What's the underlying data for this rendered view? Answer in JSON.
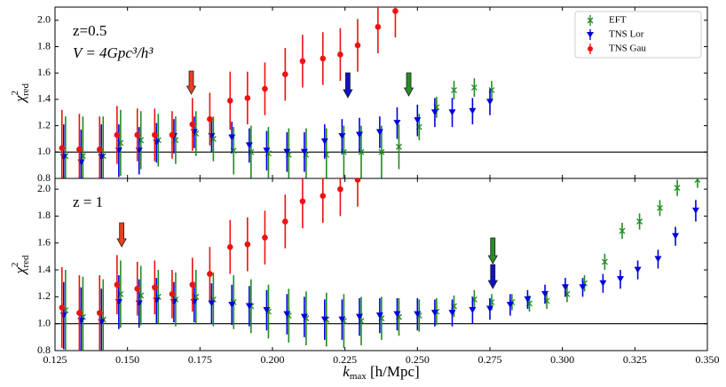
{
  "chart_data": [
    {
      "type": "errorbar",
      "annotations": [
        "z=0.5",
        "V = 4Gpc³/h³"
      ],
      "ylabel": {
        "base": "χ",
        "sup": "2",
        "sub": "red"
      },
      "x": [
        0.128,
        0.134,
        0.141,
        0.147,
        0.154,
        0.16,
        0.166,
        0.173,
        0.179,
        0.186,
        0.192,
        0.198,
        0.205,
        0.211,
        0.218,
        0.224,
        0.23,
        0.237,
        0.243,
        0.25,
        0.256,
        0.262,
        0.269,
        0.275
      ],
      "ylim": [
        0.8,
        2.1
      ],
      "yticks": [
        0.8,
        {
          "value": 1,
          "label": "1.0"
        },
        1.2,
        1.4,
        1.6,
        1.8,
        {
          "value": 2,
          "label": "2.0"
        }
      ],
      "hline": 1,
      "legend": "upper right",
      "series": [
        {
          "name": "EFT",
          "color": "#228b22",
          "marker": "x",
          "values": [
            0.97,
            0.97,
            0.97,
            1.07,
            1.09,
            1.09,
            1.09,
            1.14,
            1.1,
            1.01,
            1.0,
            0.99,
            0.98,
            0.98,
            0.98,
            1.0,
            1.0,
            1.0,
            1.04,
            1.19,
            1.34,
            1.47,
            1.49,
            1.47
          ],
          "errors": [
            0.3,
            0.3,
            0.3,
            0.25,
            0.22,
            0.2,
            0.18,
            0.17,
            0.17,
            0.18,
            0.2,
            0.2,
            0.2,
            0.2,
            0.2,
            0.2,
            0.2,
            0.2,
            0.17,
            0.1,
            0.08,
            0.07,
            0.07,
            0.07
          ]
        },
        {
          "name": "TNS Lor",
          "color": "#0000dd",
          "marker": "v",
          "values": [
            0.96,
            0.92,
            0.96,
            1.01,
            1.01,
            1.07,
            1.12,
            1.15,
            1.12,
            1.11,
            1.05,
            1.01,
            1.0,
            1.0,
            1.08,
            1.12,
            1.13,
            1.15,
            1.22,
            1.24,
            1.3,
            1.3,
            1.31,
            1.38
          ],
          "errors": [
            0.25,
            0.25,
            0.25,
            0.2,
            0.18,
            0.15,
            0.13,
            0.12,
            0.12,
            0.12,
            0.13,
            0.15,
            0.15,
            0.15,
            0.13,
            0.13,
            0.13,
            0.12,
            0.12,
            0.12,
            0.11,
            0.11,
            0.1,
            0.1
          ]
        },
        {
          "name": "TNS Gau",
          "color": "#ee1111",
          "marker": "o",
          "values": [
            1.03,
            1.02,
            1.02,
            1.13,
            1.13,
            1.13,
            1.13,
            1.21,
            1.25,
            1.39,
            1.41,
            1.48,
            1.59,
            1.69,
            1.71,
            1.74,
            1.81,
            1.95,
            2.07,
            null,
            null,
            null,
            null,
            null
          ],
          "errors": [
            0.29,
            0.27,
            0.25,
            0.22,
            0.2,
            0.2,
            0.18,
            0.2,
            0.2,
            0.22,
            0.2,
            0.2,
            0.2,
            0.2,
            0.2,
            0.2,
            0.2,
            0.2,
            0.2,
            null,
            null,
            null,
            null,
            null
          ]
        }
      ],
      "arrows": [
        {
          "x": 0.172,
          "color": "#e8401c"
        },
        {
          "x": 0.226,
          "color": "#1010cc"
        },
        {
          "x": 0.247,
          "color": "#2a8a2a"
        }
      ]
    },
    {
      "type": "errorbar",
      "annotations": [
        "z = 1"
      ],
      "ylabel": {
        "base": "χ",
        "sup": "2",
        "sub": "red"
      },
      "xlabel": {
        "base": "k",
        "sub": "max",
        "rest": " [h/Mpc]"
      },
      "x": [
        0.128,
        0.134,
        0.141,
        0.147,
        0.154,
        0.16,
        0.166,
        0.173,
        0.179,
        0.186,
        0.192,
        0.198,
        0.205,
        0.211,
        0.218,
        0.224,
        0.23,
        0.237,
        0.243,
        0.25,
        0.256,
        0.262,
        0.269,
        0.275,
        0.282,
        0.288,
        0.294,
        0.301,
        0.307,
        0.314,
        0.32,
        0.326,
        0.333,
        0.339,
        0.346
      ],
      "xlim": [
        0.125,
        0.35
      ],
      "xticks": [
        0.125,
        {
          "value": 0.15,
          "label": "0.150"
        },
        0.175,
        {
          "value": 0.2,
          "label": "0.200"
        },
        0.225,
        {
          "value": 0.25,
          "label": "0.250"
        },
        0.275,
        {
          "value": 0.3,
          "label": "0.300"
        },
        0.325,
        {
          "value": 0.35,
          "label": "0.350"
        }
      ],
      "ylim": [
        0.8,
        2.08
      ],
      "yticks": [
        0.8,
        {
          "value": 1,
          "label": "1.0"
        },
        1.2,
        1.4,
        1.6,
        1.8,
        {
          "value": 2,
          "label": "2.0"
        }
      ],
      "hline": 1,
      "series": [
        {
          "color": "#228b22",
          "marker": "x",
          "values": [
            1.1,
            1.05,
            1.03,
            1.22,
            1.21,
            1.2,
            1.18,
            1.2,
            1.18,
            1.16,
            1.13,
            1.09,
            1.06,
            1.04,
            1.03,
            1.02,
            1.02,
            1.04,
            1.05,
            1.06,
            1.09,
            1.13,
            1.18,
            1.16,
            1.16,
            1.15,
            1.17,
            1.22,
            1.3,
            1.46,
            1.69,
            1.76,
            1.86,
            2.01,
            2.07
          ],
          "errors": [
            0.3,
            0.3,
            0.3,
            0.25,
            0.22,
            0.2,
            0.2,
            0.2,
            0.2,
            0.2,
            0.2,
            0.2,
            0.2,
            0.2,
            0.2,
            0.2,
            0.18,
            0.16,
            0.14,
            0.12,
            0.1,
            0.08,
            0.07,
            0.06,
            0.06,
            0.06,
            0.06,
            0.06,
            0.06,
            0.06,
            0.06,
            0.06,
            0.06,
            0.06,
            0.06
          ]
        },
        {
          "color": "#0000dd",
          "marker": "v",
          "values": [
            1.06,
            1.02,
            1.01,
            1.16,
            1.15,
            1.17,
            1.16,
            1.16,
            1.15,
            1.14,
            1.13,
            1.1,
            1.07,
            1.05,
            1.03,
            1.03,
            1.05,
            1.06,
            1.07,
            1.07,
            1.08,
            1.08,
            1.1,
            1.11,
            1.14,
            1.18,
            1.22,
            1.27,
            1.27,
            1.3,
            1.33,
            1.4,
            1.48,
            1.65,
            1.84
          ],
          "errors": [
            0.25,
            0.25,
            0.25,
            0.2,
            0.18,
            0.17,
            0.15,
            0.15,
            0.15,
            0.15,
            0.15,
            0.15,
            0.15,
            0.15,
            0.15,
            0.15,
            0.14,
            0.13,
            0.12,
            0.12,
            0.1,
            0.1,
            0.1,
            0.08,
            0.08,
            0.07,
            0.07,
            0.07,
            0.07,
            0.07,
            0.07,
            0.07,
            0.07,
            0.07,
            0.08
          ]
        },
        {
          "color": "#ee1111",
          "marker": "o",
          "values": [
            1.12,
            1.08,
            1.08,
            1.29,
            1.26,
            1.27,
            1.22,
            1.29,
            1.37,
            1.57,
            1.59,
            1.64,
            1.76,
            1.91,
            1.95,
            2.0,
            2.07,
            null,
            null,
            null,
            null,
            null,
            null,
            null,
            null,
            null,
            null,
            null,
            null,
            null,
            null,
            null,
            null,
            null,
            null
          ],
          "errors": [
            0.3,
            0.28,
            0.28,
            0.22,
            0.2,
            0.2,
            0.18,
            0.2,
            0.2,
            0.2,
            0.2,
            0.2,
            0.2,
            0.2,
            0.2,
            0.2,
            0.2,
            null,
            null,
            null,
            null,
            null,
            null,
            null,
            null,
            null,
            null,
            null,
            null,
            null,
            null,
            null,
            null,
            null,
            null
          ]
        }
      ],
      "arrows": [
        {
          "x": 0.148,
          "color": "#e8401c"
        },
        {
          "x": 0.276,
          "color": "#2a8a2a"
        },
        {
          "x": 0.276,
          "color": "#1010cc"
        }
      ]
    }
  ]
}
